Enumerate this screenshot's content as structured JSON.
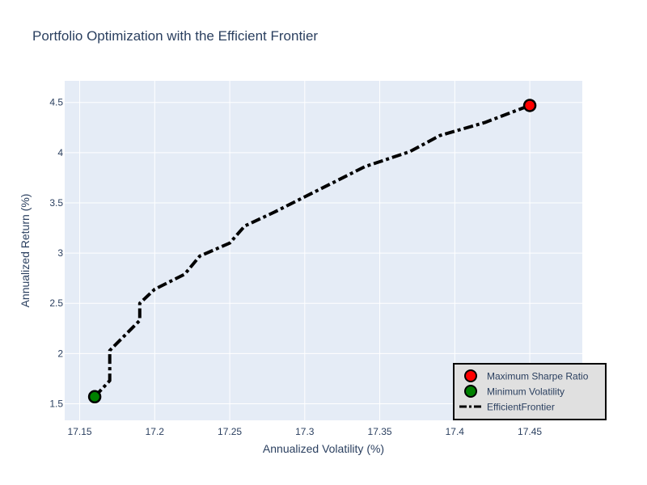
{
  "chart_data": {
    "type": "line",
    "title": "Portfolio Optimization with the Efficient Frontier",
    "xlabel": "Annualized Volatility (%)",
    "ylabel": "Annualized Return (%)",
    "xlim": [
      17.14,
      17.485
    ],
    "ylim": [
      1.335,
      4.715
    ],
    "xticks": [
      17.15,
      17.2,
      17.25,
      17.3,
      17.35,
      17.4,
      17.45
    ],
    "xtick_labels": [
      "17.15",
      "17.2",
      "17.25",
      "17.3",
      "17.35",
      "17.4",
      "17.45"
    ],
    "yticks": [
      1.5,
      2,
      2.5,
      3,
      3.5,
      4,
      4.5
    ],
    "ytick_labels": [
      "1.5",
      "2",
      "2.5",
      "3",
      "3.5",
      "4",
      "4.5"
    ],
    "grid": true,
    "legend_position": "bottom-right",
    "plot_background": "#e5ecf6",
    "series": [
      {
        "name": "EfficientFrontier",
        "kind": "line",
        "color": "#000000",
        "dash": "dashdot",
        "x": [
          17.16,
          17.17,
          17.17,
          17.19,
          17.19,
          17.2,
          17.22,
          17.23,
          17.25,
          17.26,
          17.28,
          17.3,
          17.32,
          17.34,
          17.37,
          17.39,
          17.42,
          17.45
        ],
        "y": [
          1.57,
          1.73,
          2.03,
          2.33,
          2.5,
          2.64,
          2.79,
          2.97,
          3.1,
          3.27,
          3.41,
          3.56,
          3.71,
          3.86,
          4.01,
          4.17,
          4.3,
          4.47
        ]
      },
      {
        "name": "Maximum Sharpe Ratio",
        "kind": "marker",
        "color": "#ff0000",
        "x": [
          17.45
        ],
        "y": [
          4.47
        ]
      },
      {
        "name": "Minimum Volatility",
        "kind": "marker",
        "color": "#008000",
        "x": [
          17.16
        ],
        "y": [
          1.57
        ]
      }
    ],
    "legend": [
      "Maximum Sharpe Ratio",
      "Minimum Volatility",
      "EfficientFrontier"
    ]
  }
}
